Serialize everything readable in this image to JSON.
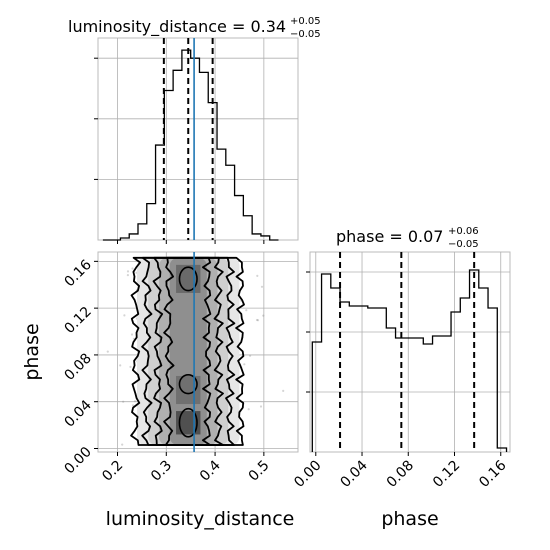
{
  "chart_data": [
    {
      "type": "histogram",
      "panel": "luminosity_distance marginal",
      "title": "luminosity_distance = 0.34",
      "title_sup": "+0.05",
      "title_sub": "−0.05",
      "xlim": [
        0.16,
        0.57
      ],
      "ylim": [
        0,
        1.0
      ],
      "y_tick_labels_shown": false,
      "grid": true,
      "bin_edges": [
        0.17,
        0.188,
        0.206,
        0.224,
        0.242,
        0.26,
        0.278,
        0.296,
        0.314,
        0.332,
        0.35,
        0.368,
        0.386,
        0.404,
        0.422,
        0.44,
        0.458,
        0.476,
        0.494,
        0.512,
        0.53
      ],
      "counts": [
        0.0,
        0.0,
        0.01,
        0.03,
        0.08,
        0.18,
        0.47,
        0.74,
        0.84,
        0.94,
        0.9,
        0.83,
        0.68,
        0.45,
        0.37,
        0.22,
        0.12,
        0.03,
        0.02,
        0.0
      ],
      "quantile_lines": [
        0.295,
        0.345,
        0.395
      ],
      "truth_value": 0.357,
      "truth_color": "#1f77b4"
    },
    {
      "type": "histogram",
      "panel": "phase marginal",
      "title": "phase = 0.07",
      "title_sup": "+0.06",
      "title_sub": "−0.05",
      "xlim": [
        -0.005,
        0.168
      ],
      "xticks": [
        0.0,
        0.04,
        0.08,
        0.12,
        0.16
      ],
      "xtick_labels": [
        "0.00",
        "0.04",
        "0.08",
        "0.12",
        "0.16"
      ],
      "xlabel": "phase",
      "ylim": [
        0,
        1.0
      ],
      "y_tick_labels_shown": false,
      "grid": true,
      "bin_edges": [
        -0.003,
        0.005,
        0.013,
        0.021,
        0.029,
        0.037,
        0.045,
        0.053,
        0.061,
        0.069,
        0.077,
        0.085,
        0.093,
        0.101,
        0.109,
        0.117,
        0.125,
        0.133,
        0.141,
        0.149,
        0.157,
        0.165
      ],
      "counts": [
        0.55,
        0.89,
        0.82,
        0.75,
        0.73,
        0.73,
        0.72,
        0.72,
        0.62,
        0.57,
        0.57,
        0.57,
        0.54,
        0.58,
        0.58,
        0.7,
        0.77,
        0.91,
        0.82,
        0.72,
        0.02
      ],
      "quantile_lines": [
        0.021,
        0.074,
        0.137
      ],
      "truth_value": null
    },
    {
      "type": "corner_2d",
      "panel": "joint luminosity_distance vs phase",
      "xlabel": "luminosity_distance",
      "ylabel": "phase",
      "xlim": [
        0.16,
        0.57
      ],
      "ylim": [
        -0.003,
        0.168
      ],
      "xticks": [
        0.2,
        0.3,
        0.4,
        0.5
      ],
      "xtick_labels": [
        "0.2",
        "0.3",
        "0.4",
        "0.5"
      ],
      "yticks": [
        0.0,
        0.04,
        0.08,
        0.12,
        0.16
      ],
      "ytick_labels": [
        "0.00",
        "0.04",
        "0.08",
        "0.12",
        "0.16"
      ],
      "grid": true,
      "truth_value_x": 0.357,
      "contour_half_widths": [
        0.108,
        0.085,
        0.062,
        0.04
      ],
      "contour_center_x": 0.345,
      "contour_y_range": [
        0.003,
        0.163
      ],
      "density_shading": "grayscale"
    }
  ]
}
